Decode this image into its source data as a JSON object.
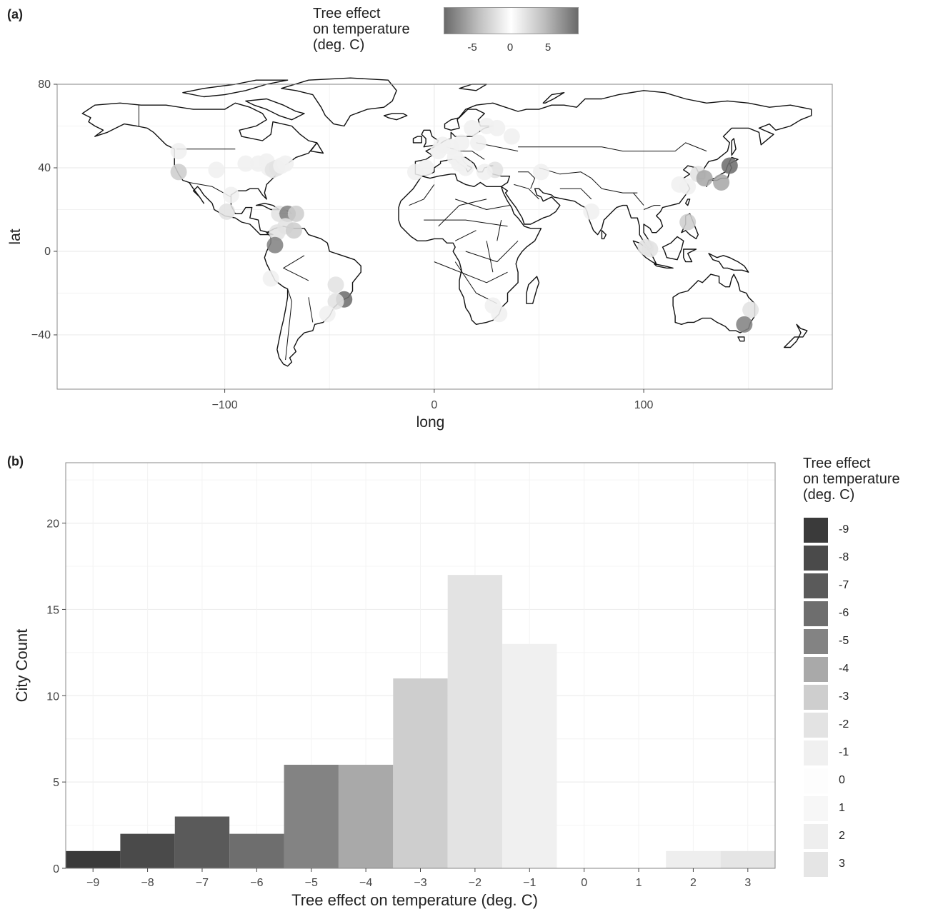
{
  "chart_data": [
    {
      "panel": "(a)",
      "type": "scatter",
      "xlabel": "long",
      "ylabel": "lat",
      "xlim": [
        -180,
        190
      ],
      "ylim": [
        -66,
        80
      ],
      "xticks": [
        -100,
        0,
        100
      ],
      "yticks": [
        -40,
        0,
        40,
        80
      ],
      "legend": {
        "title": [
          "Tree effect",
          "on temperature",
          "(deg. C)"
        ],
        "ticks": [
          -5,
          0,
          5
        ],
        "range": [
          -9,
          9
        ],
        "placement": "top"
      },
      "points": [
        {
          "x": -122,
          "y": 48,
          "v": -1
        },
        {
          "x": -122,
          "y": 38,
          "v": -3
        },
        {
          "x": -104,
          "y": 39,
          "v": -1
        },
        {
          "x": -90,
          "y": 42,
          "v": -1
        },
        {
          "x": -84,
          "y": 42,
          "v": -1
        },
        {
          "x": -80,
          "y": 43,
          "v": -1
        },
        {
          "x": -79,
          "y": 40,
          "v": -1
        },
        {
          "x": -77,
          "y": 39,
          "v": -2
        },
        {
          "x": -75,
          "y": 40,
          "v": -2
        },
        {
          "x": -73,
          "y": 41,
          "v": -1
        },
        {
          "x": -71,
          "y": 42,
          "v": -1
        },
        {
          "x": -97,
          "y": 27,
          "v": -1
        },
        {
          "x": -99,
          "y": 19,
          "v": -2
        },
        {
          "x": -74,
          "y": 18,
          "v": -2
        },
        {
          "x": -70,
          "y": 18,
          "v": -5
        },
        {
          "x": -66,
          "y": 18,
          "v": -3
        },
        {
          "x": -71,
          "y": 12,
          "v": -2
        },
        {
          "x": -67,
          "y": 10,
          "v": -3
        },
        {
          "x": -75,
          "y": 9,
          "v": -2
        },
        {
          "x": -76,
          "y": 3,
          "v": -5
        },
        {
          "x": -78,
          "y": -13,
          "v": -1
        },
        {
          "x": -47,
          "y": -16,
          "v": -2
        },
        {
          "x": -43,
          "y": -23,
          "v": -6
        },
        {
          "x": -47,
          "y": -24,
          "v": -2
        },
        {
          "x": -51,
          "y": -30,
          "v": -1
        },
        {
          "x": -9,
          "y": 38,
          "v": -1
        },
        {
          "x": -4,
          "y": 40,
          "v": -1
        },
        {
          "x": 2,
          "y": 48,
          "v": -1
        },
        {
          "x": 4,
          "y": 51,
          "v": -1
        },
        {
          "x": 8,
          "y": 50,
          "v": -1
        },
        {
          "x": 13,
          "y": 52,
          "v": -1
        },
        {
          "x": 10,
          "y": 45,
          "v": -1
        },
        {
          "x": 12,
          "y": 42,
          "v": -1
        },
        {
          "x": 15,
          "y": 40,
          "v": -1
        },
        {
          "x": 18,
          "y": 59,
          "v": -1
        },
        {
          "x": 25,
          "y": 60,
          "v": -1
        },
        {
          "x": 30,
          "y": 59,
          "v": -1
        },
        {
          "x": 37,
          "y": 55,
          "v": -1
        },
        {
          "x": 21,
          "y": 52,
          "v": -1
        },
        {
          "x": 29,
          "y": 39,
          "v": -2
        },
        {
          "x": 24,
          "y": 38,
          "v": -1
        },
        {
          "x": 51,
          "y": 38,
          "v": -1
        },
        {
          "x": 75,
          "y": 19,
          "v": -1
        },
        {
          "x": 117,
          "y": 32,
          "v": -1
        },
        {
          "x": 121,
          "y": 31,
          "v": -1
        },
        {
          "x": 126,
          "y": 37,
          "v": -2
        },
        {
          "x": 129,
          "y": 35,
          "v": -4
        },
        {
          "x": 137,
          "y": 33,
          "v": -4
        },
        {
          "x": 141,
          "y": 41,
          "v": -6
        },
        {
          "x": 121,
          "y": 14,
          "v": -3
        },
        {
          "x": 101,
          "y": 2,
          "v": -2
        },
        {
          "x": 103,
          "y": 1,
          "v": -2
        },
        {
          "x": 28,
          "y": -26,
          "v": -1
        },
        {
          "x": 31,
          "y": -30,
          "v": -1
        },
        {
          "x": 151,
          "y": -28,
          "v": -2
        },
        {
          "x": 148,
          "y": -35,
          "v": -5
        }
      ]
    },
    {
      "panel": "(b)",
      "type": "bar",
      "xlabel": "Tree effect on temperature (deg. C)",
      "ylabel": "City Count",
      "categories": [
        -9,
        -8,
        -7,
        -6,
        -5,
        -4,
        -3,
        -2,
        -1,
        0,
        1,
        2,
        3
      ],
      "values": [
        1,
        2,
        3,
        2,
        6,
        6,
        11,
        17,
        13,
        0,
        0,
        1,
        1
      ],
      "ylim": [
        0,
        23.5
      ],
      "yticks": [
        0,
        5,
        10,
        15,
        20
      ],
      "legend": {
        "title": [
          "Tree effect",
          "on temperature",
          "(deg. C)"
        ],
        "entries": [
          "-9",
          "-8",
          "-7",
          "-6",
          "-5",
          "-4",
          "-3",
          "-2",
          "-1",
          "0",
          "1",
          "2",
          "3"
        ],
        "placement": "right"
      }
    }
  ],
  "colors": {
    "-9": "#3a3a3a",
    "-8": "#4a4a4a",
    "-7": "#5a5a5a",
    "-6": "#6e6e6e",
    "-5": "#838383",
    "-4": "#a9a9a9",
    "-3": "#cecece",
    "-2": "#e3e3e3",
    "-1": "#f0f0f0",
    "0": "#fdfdfd",
    "1": "#f7f7f7",
    "2": "#eeeeee",
    "3": "#e5e5e5"
  }
}
